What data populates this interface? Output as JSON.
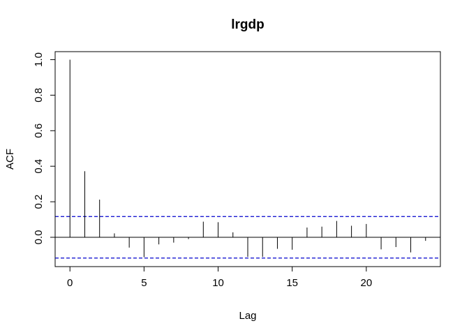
{
  "chart_data": {
    "type": "bar",
    "title": "lrgdp",
    "xlabel": "Lag",
    "ylabel": "ACF",
    "xlim": [
      -1.0,
      25.0
    ],
    "ylim": [
      -0.165,
      1.045
    ],
    "xticks": [
      0,
      5,
      10,
      15,
      20
    ],
    "xtick_labels": [
      "0",
      "5",
      "10",
      "15",
      "20"
    ],
    "yticks": [
      0.0,
      0.2,
      0.4,
      0.6,
      0.8,
      1.0
    ],
    "ytick_labels": [
      "0.0",
      "0.2",
      "0.4",
      "0.6",
      "0.8",
      "1.0"
    ],
    "lags": [
      0,
      1,
      2,
      3,
      4,
      5,
      6,
      7,
      8,
      9,
      10,
      11,
      12,
      13,
      14,
      15,
      16,
      17,
      18,
      19,
      20,
      21,
      22,
      23,
      24
    ],
    "acf": [
      1.0,
      0.372,
      0.212,
      0.022,
      -0.058,
      -0.112,
      -0.04,
      -0.03,
      -0.01,
      0.088,
      0.085,
      0.028,
      -0.11,
      -0.11,
      -0.065,
      -0.07,
      0.055,
      0.06,
      0.092,
      0.065,
      0.075,
      -0.068,
      -0.055,
      -0.085,
      -0.02
    ],
    "confidence_bound": 0.117,
    "grid": false,
    "colors": {
      "spikes": "#000000",
      "ci_lines": "#0000cc",
      "zero_line": "#000000"
    }
  }
}
